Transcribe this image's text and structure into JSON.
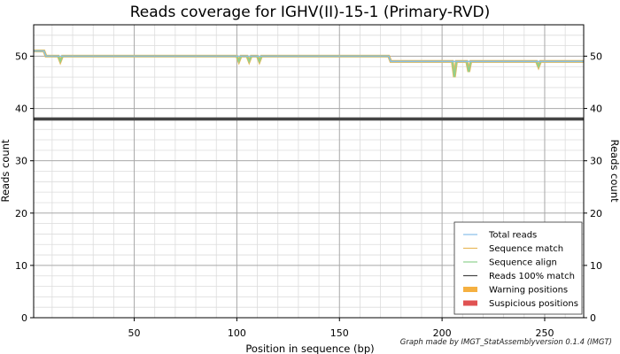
{
  "chart_data": {
    "type": "line",
    "title": "Reads coverage for IGHV(II)-15-1 (Primary-RVD)",
    "xlabel": "Position in sequence (bp)",
    "ylabel": "Reads count",
    "ylabel_right": "Reads count",
    "footer": "Graph made by IMGT_StatAssemblyversion 0.1.4 (IMGT)",
    "xlim": [
      1,
      269
    ],
    "ylim": [
      0,
      56
    ],
    "x_ticks": [
      50,
      100,
      150,
      200,
      250
    ],
    "y_ticks": [
      0,
      10,
      20,
      30,
      40,
      50
    ],
    "grid": true,
    "legend_position": "bottom-right",
    "series": [
      {
        "name": "Total reads",
        "color": "#87bfe8",
        "points": [
          [
            1,
            51
          ],
          [
            6,
            51
          ],
          [
            7,
            50
          ],
          [
            174,
            50
          ],
          [
            175,
            49
          ],
          [
            269,
            49
          ]
        ]
      },
      {
        "name": "Sequence match",
        "color": "#e8b85a",
        "points": [
          [
            1,
            51
          ],
          [
            6,
            51
          ],
          [
            7,
            50
          ],
          [
            13,
            50
          ],
          [
            14,
            49
          ],
          [
            15,
            50
          ],
          [
            100,
            50
          ],
          [
            101,
            49
          ],
          [
            102,
            50
          ],
          [
            105,
            50
          ],
          [
            106,
            49
          ],
          [
            107,
            50
          ],
          [
            110,
            50
          ],
          [
            111,
            49
          ],
          [
            112,
            50
          ],
          [
            174,
            50
          ],
          [
            175,
            49
          ],
          [
            205,
            49
          ],
          [
            206,
            46
          ],
          [
            207,
            49
          ],
          [
            212,
            49
          ],
          [
            213,
            47
          ],
          [
            214,
            49
          ],
          [
            246,
            49
          ],
          [
            247,
            48
          ],
          [
            248,
            49
          ],
          [
            269,
            49
          ]
        ]
      },
      {
        "name": "Sequence align",
        "color": "#8fd18f",
        "points": [
          [
            1,
            51
          ],
          [
            6,
            51
          ],
          [
            7,
            50
          ],
          [
            13,
            50
          ],
          [
            14,
            49
          ],
          [
            15,
            50
          ],
          [
            100,
            50
          ],
          [
            101,
            49
          ],
          [
            102,
            50
          ],
          [
            105,
            50
          ],
          [
            106,
            49
          ],
          [
            107,
            50
          ],
          [
            110,
            50
          ],
          [
            111,
            49
          ],
          [
            112,
            50
          ],
          [
            174,
            50
          ],
          [
            175,
            49
          ],
          [
            205,
            49
          ],
          [
            206,
            46
          ],
          [
            207,
            49
          ],
          [
            212,
            49
          ],
          [
            213,
            47
          ],
          [
            214,
            49
          ],
          [
            246,
            49
          ],
          [
            247,
            48
          ],
          [
            248,
            49
          ],
          [
            269,
            49
          ]
        ]
      },
      {
        "name": "Reads 100% match",
        "color": "#444444",
        "points": [
          [
            1,
            38
          ],
          [
            269,
            38
          ]
        ]
      }
    ],
    "markers": [
      {
        "name": "Warning positions",
        "color": "#f5b041"
      },
      {
        "name": "Suspicious positions",
        "color": "#e05252"
      }
    ]
  }
}
